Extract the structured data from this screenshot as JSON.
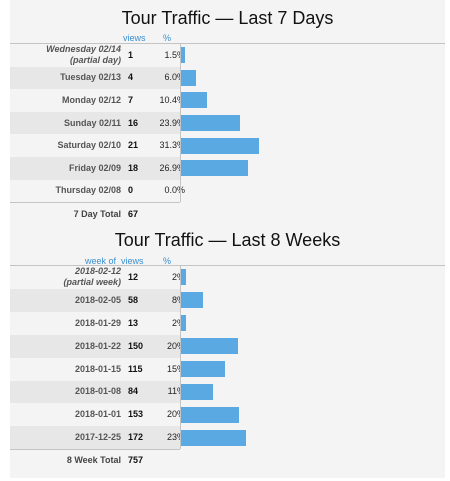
{
  "chart_data": [
    {
      "type": "bar",
      "title": "Tour Traffic — Last 7 Days",
      "columns": [
        "views",
        "%"
      ],
      "categories": [
        "Wednesday 02/14",
        "Tuesday 02/13",
        "Monday 02/12",
        "Sunday 02/11",
        "Saturday 02/10",
        "Friday 02/09",
        "Thursday 02/08"
      ],
      "notes": [
        "(partial day)",
        "",
        "",
        "",
        "",
        "",
        ""
      ],
      "values": [
        1,
        4,
        7,
        16,
        21,
        18,
        0
      ],
      "percents": [
        "1.5%",
        "6.0%",
        "10.4%",
        "23.9%",
        "31.3%",
        "26.9%",
        "0.0%"
      ],
      "total_label": "7 Day Total",
      "total": 67
    },
    {
      "type": "bar",
      "title": "Tour Traffic — Last 8 Weeks",
      "columns": [
        "week of",
        "views",
        "%"
      ],
      "categories": [
        "2018-02-12",
        "2018-02-05",
        "2018-01-29",
        "2018-01-22",
        "2018-01-15",
        "2018-01-08",
        "2018-01-01",
        "2017-12-25"
      ],
      "notes": [
        "(partial week)",
        "",
        "",
        "",
        "",
        "",
        "",
        ""
      ],
      "values": [
        12,
        58,
        13,
        150,
        115,
        84,
        153,
        172
      ],
      "percents": [
        "2%",
        "8%",
        "2%",
        "20%",
        "15%",
        "11%",
        "20%",
        "23%"
      ],
      "total_label": "8 Week Total",
      "total": 757
    }
  ],
  "colors": {
    "bar": "#5aa9e2",
    "header": "#3a8fd0"
  }
}
